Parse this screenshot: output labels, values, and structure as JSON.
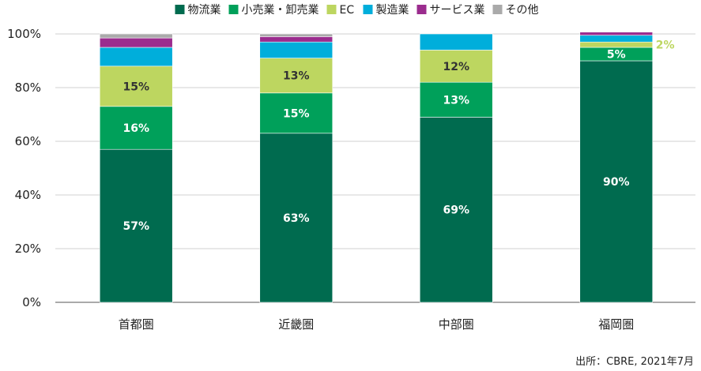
{
  "chart_data": {
    "type": "bar",
    "stacked": true,
    "categories": [
      "首都圏",
      "近畿圏",
      "中部圏",
      "福岡圏"
    ],
    "ylim": [
      0,
      100
    ],
    "yticks": [
      "0%",
      "20%",
      "40%",
      "60%",
      "80%",
      "100%"
    ],
    "grid": true,
    "legend_position": "top",
    "series": [
      {
        "name": "物流業",
        "color": "#006b4f",
        "values": [
          57,
          63,
          69,
          90
        ],
        "labels": [
          "57%",
          "63%",
          "69%",
          "90%"
        ]
      },
      {
        "name": "小売業・卸売業",
        "color": "#00a05a",
        "values": [
          16,
          15,
          13,
          5
        ],
        "labels": [
          "16%",
          "15%",
          "13%",
          "5%"
        ]
      },
      {
        "name": "EC",
        "color": "#bdd660",
        "values": [
          15,
          13,
          12,
          2
        ],
        "labels": [
          "15%",
          "13%",
          "12%",
          "2%"
        ]
      },
      {
        "name": "製造業",
        "color": "#00aedb",
        "values": [
          7,
          6,
          6,
          2.5
        ],
        "labels": [
          "",
          "",
          "",
          ""
        ]
      },
      {
        "name": "サービス業",
        "color": "#9b2c8e",
        "values": [
          3.5,
          2,
          0,
          1.2
        ],
        "labels": [
          "",
          "",
          "",
          ""
        ]
      },
      {
        "name": "その他",
        "color": "#aaaaaa",
        "values": [
          1.5,
          1,
          0,
          0
        ],
        "labels": [
          "",
          "",
          "",
          ""
        ]
      }
    ],
    "source": "出所：CBRE, 2021年7月"
  }
}
